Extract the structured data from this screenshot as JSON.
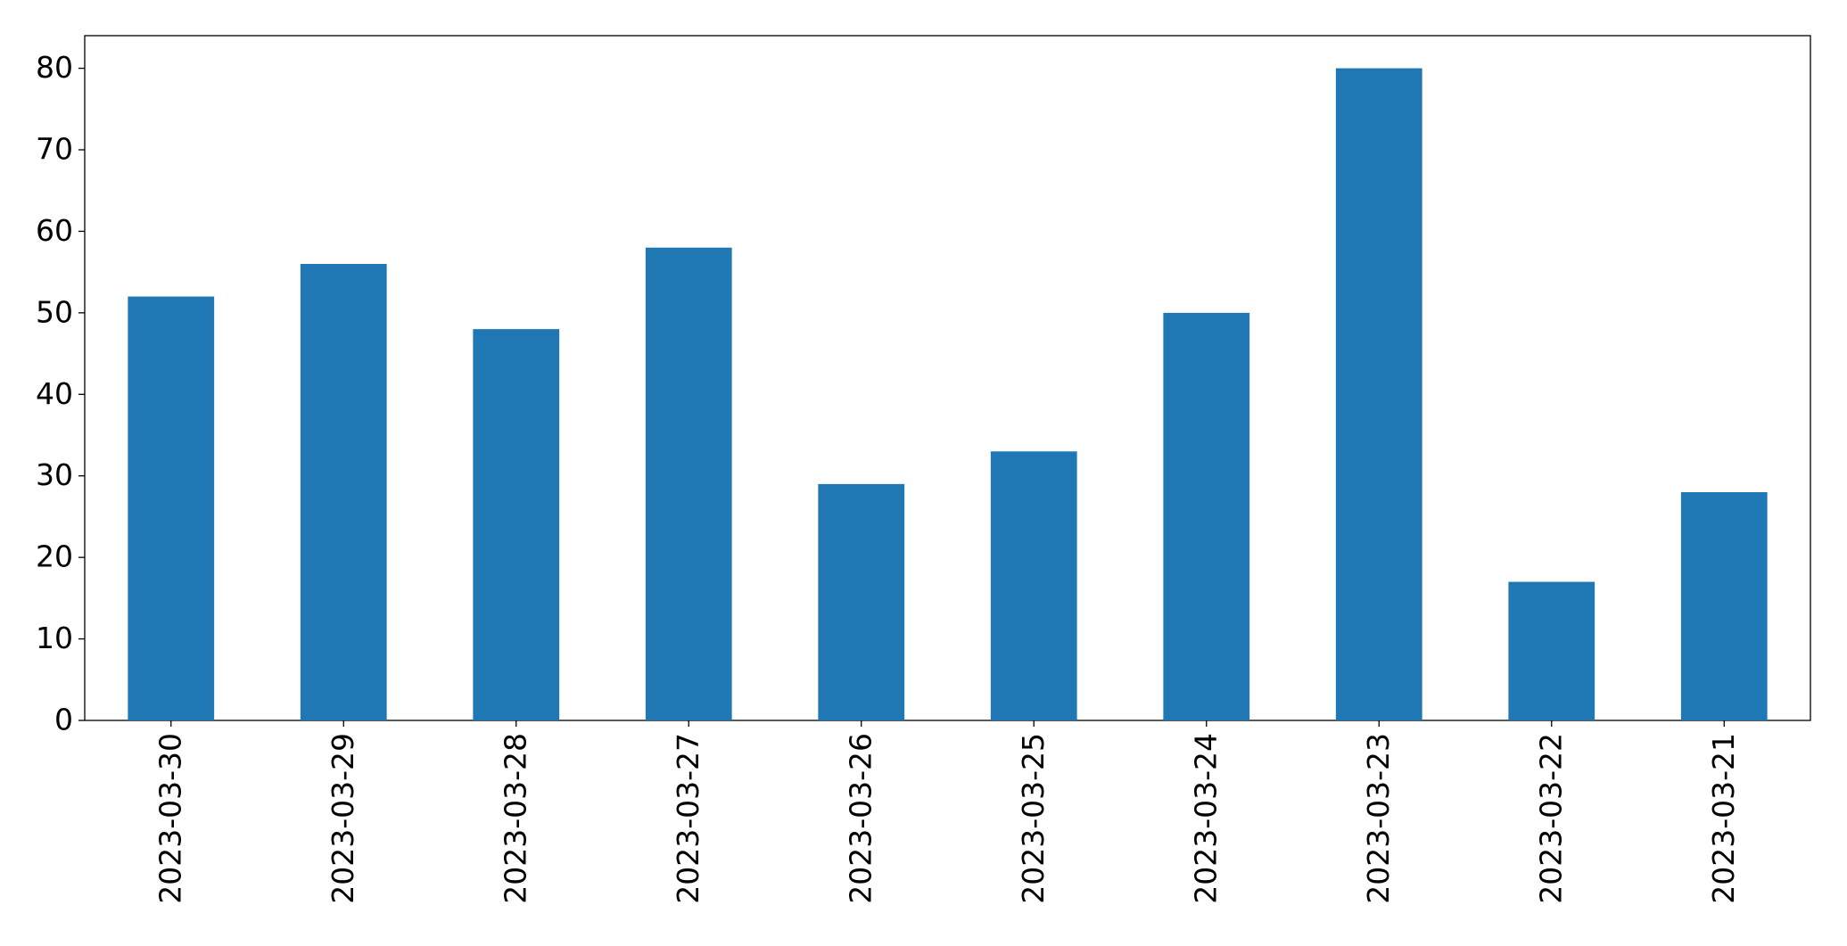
{
  "chart_data": {
    "type": "bar",
    "categories": [
      "2023-03-30",
      "2023-03-29",
      "2023-03-28",
      "2023-03-27",
      "2023-03-26",
      "2023-03-25",
      "2023-03-24",
      "2023-03-23",
      "2023-03-22",
      "2023-03-21"
    ],
    "values": [
      52,
      56,
      48,
      58,
      29,
      33,
      50,
      80,
      17,
      28
    ],
    "color": "#1f77b4",
    "ylim": [
      0,
      84
    ],
    "yticks": [
      0,
      10,
      20,
      30,
      40,
      50,
      60,
      70,
      80
    ],
    "grid": false
  }
}
